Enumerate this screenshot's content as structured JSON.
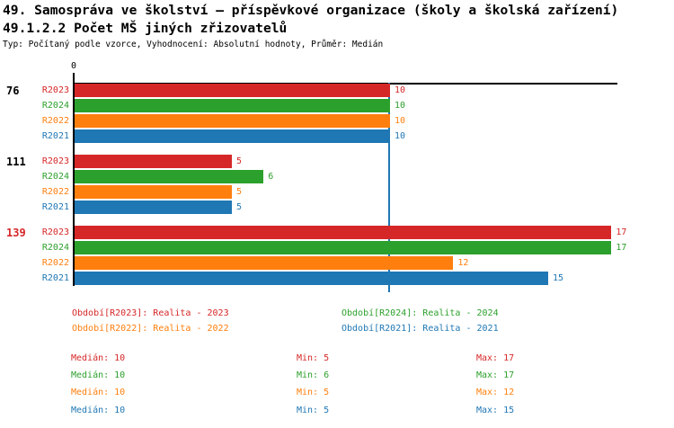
{
  "header": {
    "title": "49. Samospráva ve školství – příspěvkové organizace (školy a školská zařízení)",
    "subtitle": "49.1.2.2 Počet MŠ jiných zřizovatelů",
    "type_line": "Typ: Počítaný podle vzorce, Vyhodnocení: Absolutní hodnoty, Průměr: Medián"
  },
  "chart_data": {
    "type": "bar",
    "orientation": "horizontal",
    "title": "49.1.2.2 Počet MŠ jiných zřizovatelů",
    "axis": {
      "origin_label": "0",
      "value_min": 0,
      "value_max": 17,
      "grid": false
    },
    "median_line": {
      "value": 10,
      "color": "#1f77b4"
    },
    "series": [
      {
        "id": "R2023",
        "label": "Realita - 2023",
        "color": "#d62728"
      },
      {
        "id": "R2024",
        "label": "Realita - 2024",
        "color": "#2ca02c"
      },
      {
        "id": "R2022",
        "label": "Realita - 2022",
        "color": "#ff7f0e"
      },
      {
        "id": "R2021",
        "label": "Realita - 2021",
        "color": "#1f77b4"
      }
    ],
    "row_order": [
      "R2023",
      "R2024",
      "R2022",
      "R2021"
    ],
    "groups": [
      {
        "label": "76",
        "label_color": "#000000",
        "values": {
          "R2023": 10,
          "R2024": 10,
          "R2022": 10,
          "R2021": 10
        }
      },
      {
        "label": "111",
        "label_color": "#000000",
        "values": {
          "R2023": 5,
          "R2024": 6,
          "R2022": 5,
          "R2021": 5
        }
      },
      {
        "label": "139",
        "label_color": "#d62728",
        "values": {
          "R2023": 17,
          "R2024": 17,
          "R2022": 12,
          "R2021": 15
        }
      }
    ],
    "legend": [
      {
        "text": "Období[R2023]: Realita - 2023",
        "color": "#d62728",
        "row": 0,
        "col": 0
      },
      {
        "text": "Období[R2024]: Realita - 2024",
        "color": "#2ca02c",
        "row": 0,
        "col": 1
      },
      {
        "text": "Období[R2022]: Realita - 2022",
        "color": "#ff7f0e",
        "row": 1,
        "col": 0
      },
      {
        "text": "Období[R2021]: Realita - 2021",
        "color": "#1f77b4",
        "row": 1,
        "col": 1
      }
    ],
    "stats": [
      {
        "median": "Medián: 10",
        "min": "Min: 5",
        "max": "Max: 17",
        "color": "#d62728"
      },
      {
        "median": "Medián: 10",
        "min": "Min: 6",
        "max": "Max: 17",
        "color": "#2ca02c"
      },
      {
        "median": "Medián: 10",
        "min": "Min: 5",
        "max": "Max: 12",
        "color": "#ff7f0e"
      },
      {
        "median": "Medián: 10",
        "min": "Min: 5",
        "max": "Max: 15",
        "color": "#1f77b4"
      }
    ],
    "colors": {
      "axis": "#000000",
      "background": "#ffffff"
    }
  }
}
